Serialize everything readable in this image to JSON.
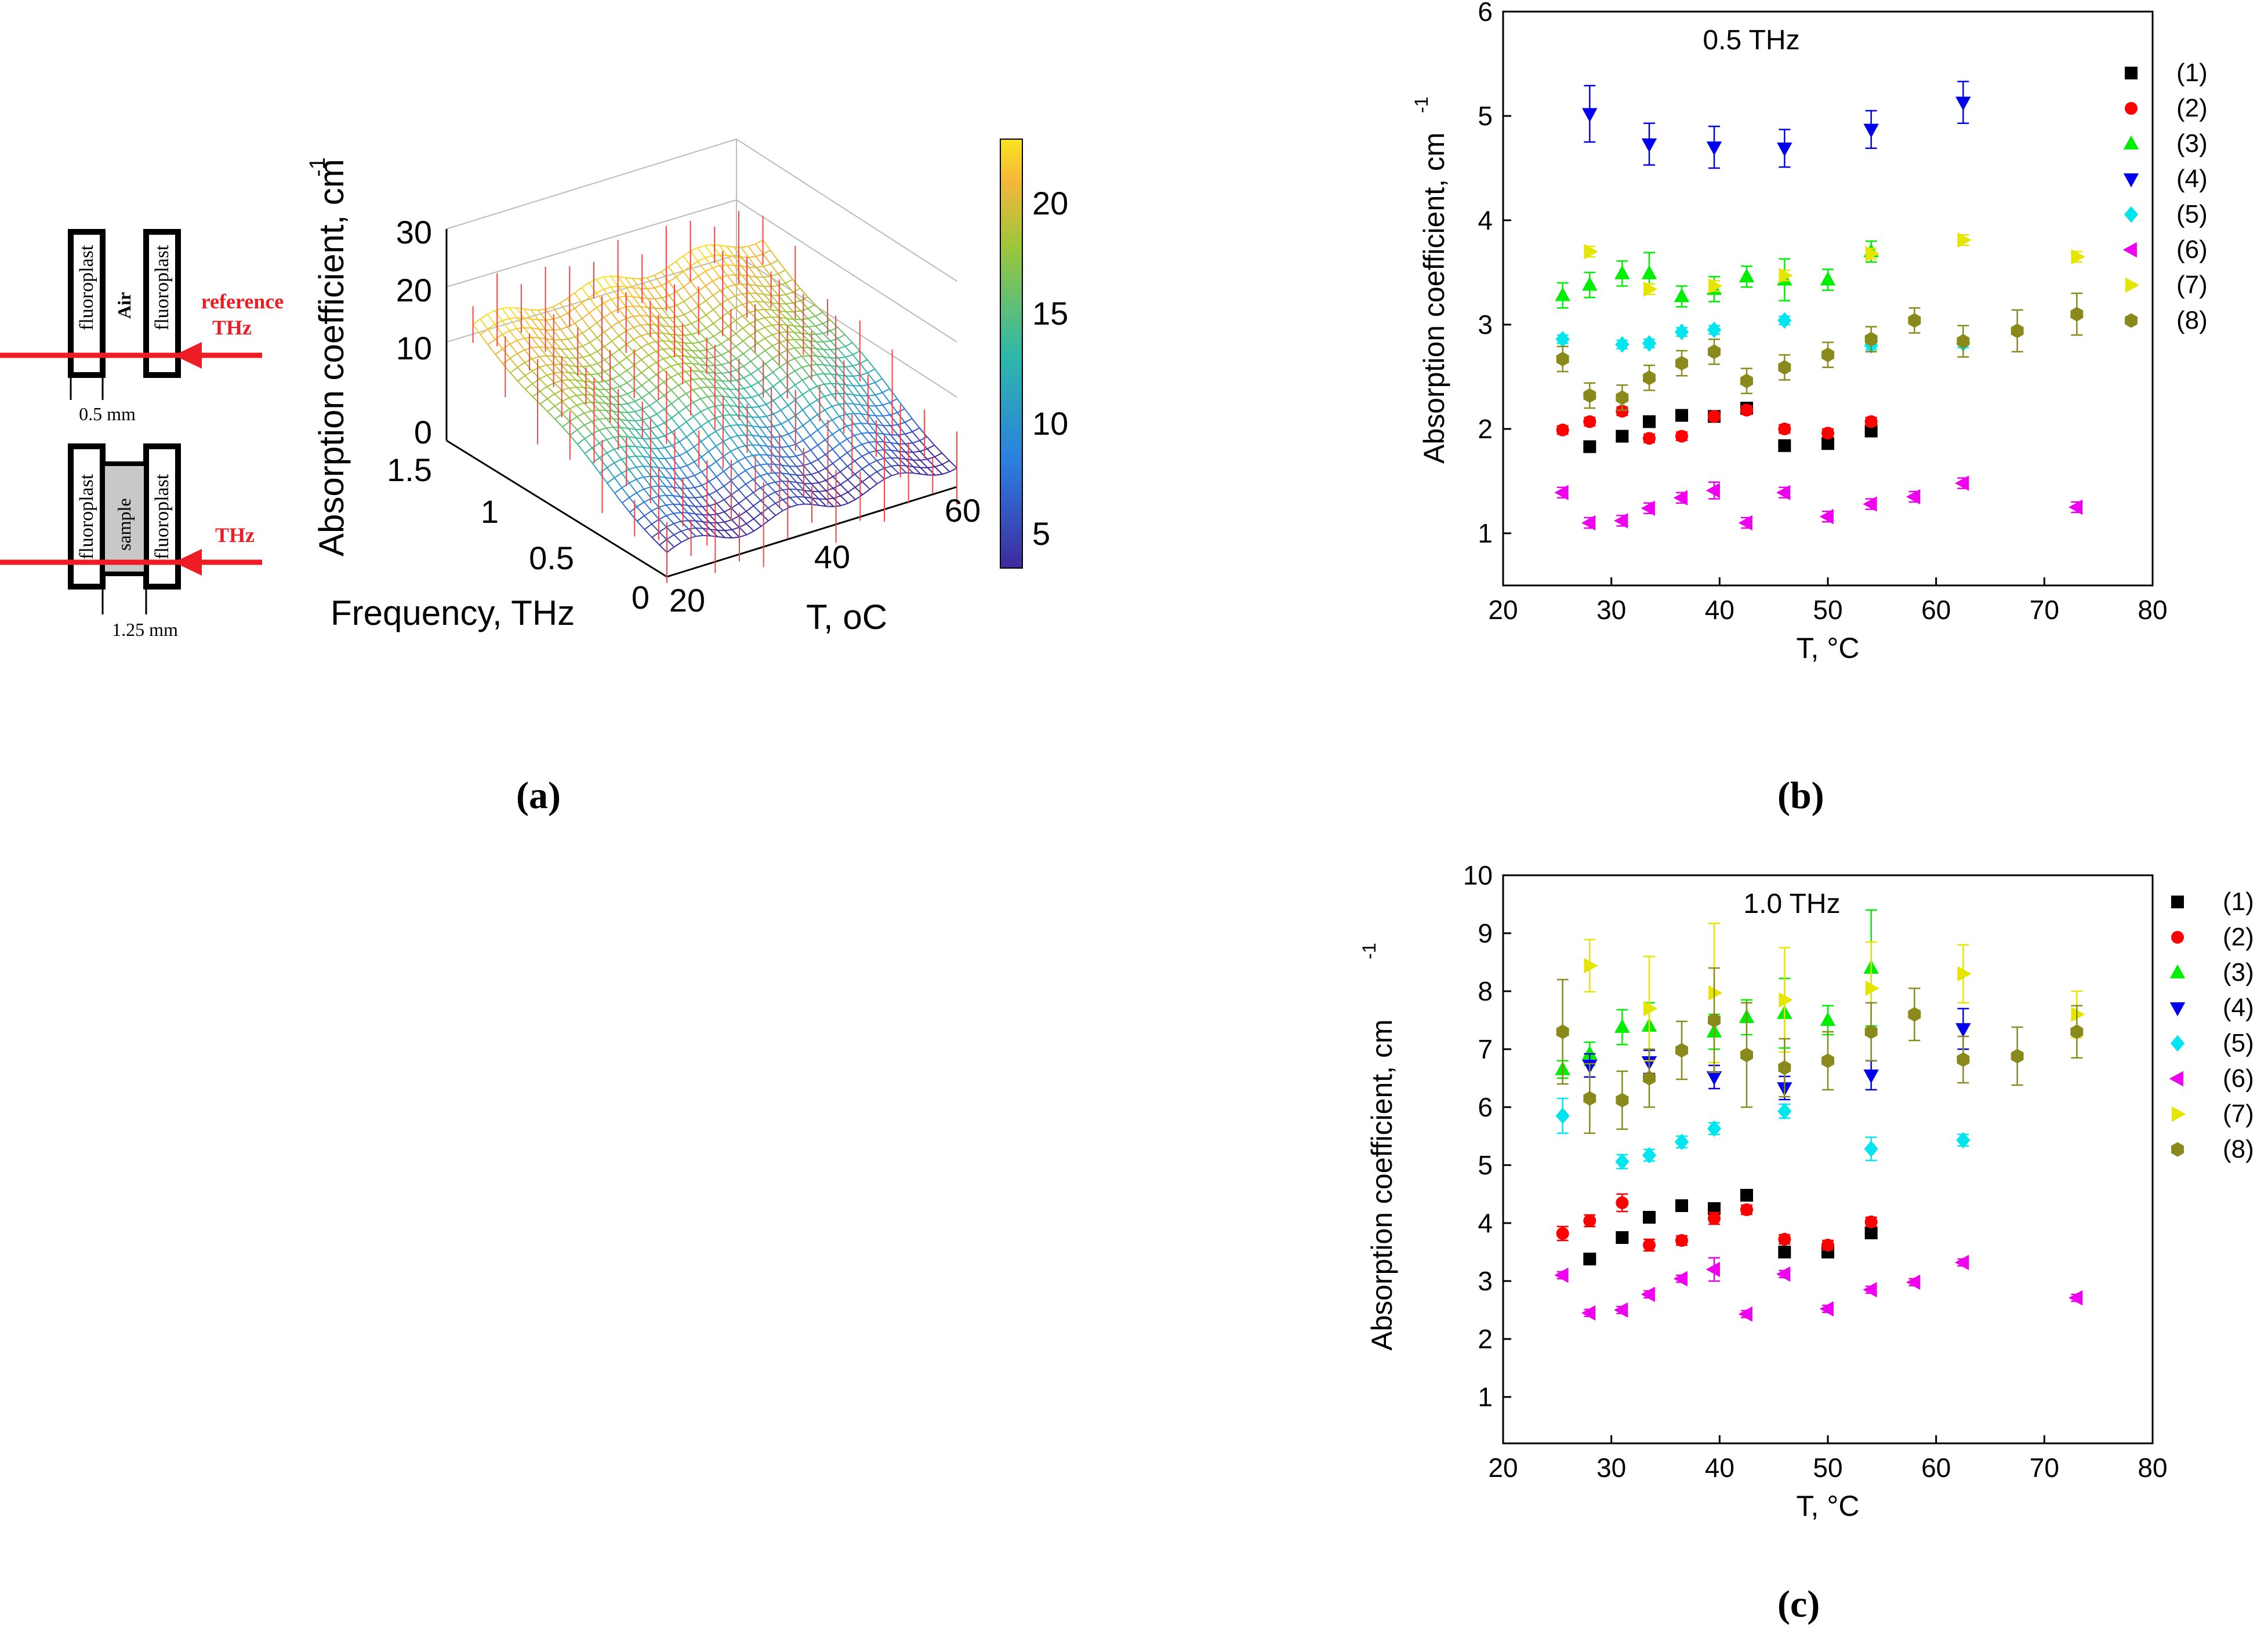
{
  "panel_a": {
    "schematic": {
      "air_cell": {
        "left_wall": "fluoroplast",
        "gap": "Air",
        "right_wall": "fluoroplast",
        "beam": "reference\nTHz",
        "dimension": "0.5 mm"
      },
      "sample_cell": {
        "left_wall": "fluoroplast",
        "gap": "sample",
        "right_wall": "fluoroplast",
        "beam": "THz",
        "dimension": "1.25 mm"
      }
    },
    "surface": {
      "zlabel": "Absorption  coefficient, cm",
      "zlabel_sup": "-1",
      "xlabel": "Frequency, THz",
      "ylabel": "T, oC",
      "z_ticks": [
        "30",
        "20",
        "10",
        "0"
      ],
      "freq_ticks": [
        "1.5",
        "1",
        "0.5",
        "0"
      ],
      "temp_ticks": [
        "20",
        "40",
        "60"
      ],
      "colorbar_ticks": [
        "20",
        "15",
        "10",
        "5"
      ],
      "colors": {
        "low": "#3f2a9e",
        "mid": "#2fb8a8",
        "high": "#f9e51f",
        "error_bars": "#ff4040"
      }
    },
    "caption": "(a)"
  },
  "chart_data": [
    {
      "type": "scatter",
      "title": "0.5 THz",
      "xlabel": "T, °C",
      "ylabel": "Absorption coefficient, cm",
      "ylabel_sup": "-1",
      "xlim": [
        20,
        80
      ],
      "ylim": [
        0.5,
        6
      ],
      "x_ticks": [
        20,
        30,
        40,
        50,
        60,
        70,
        80
      ],
      "y_ticks": [
        1,
        2,
        3,
        4,
        5,
        6
      ],
      "grid": false,
      "legend": "top-right",
      "series": [
        {
          "name": "(1)",
          "color": "#000000",
          "marker": "square",
          "points": [
            [
              28,
              1.83
            ],
            [
              31,
              1.93
            ],
            [
              33.5,
              2.07
            ],
            [
              36.5,
              2.13
            ],
            [
              39.5,
              2.12
            ],
            [
              42.5,
              2.2
            ],
            [
              46,
              1.84
            ],
            [
              50,
              1.86
            ],
            [
              54,
              1.98
            ]
          ],
          "err": [
            0.05,
            0.05,
            0.05,
            0.05,
            0.05,
            0.05,
            0.05,
            0.05,
            0.05
          ]
        },
        {
          "name": "(2)",
          "color": "#ff0000",
          "marker": "circle",
          "points": [
            [
              25.5,
              1.99
            ],
            [
              28,
              2.07
            ],
            [
              31,
              2.17
            ],
            [
              33.5,
              1.91
            ],
            [
              36.5,
              1.93
            ],
            [
              39.5,
              2.12
            ],
            [
              42.5,
              2.18
            ],
            [
              46,
              2
            ],
            [
              50,
              1.96
            ],
            [
              54,
              2.07
            ]
          ],
          "err": [
            0.04,
            0.04,
            0.04,
            0.04,
            0.04,
            0.04,
            0.04,
            0.04,
            0.04,
            0.04
          ]
        },
        {
          "name": "(3)",
          "color": "#00ee00",
          "marker": "triangle-up",
          "points": [
            [
              25.5,
              3.28
            ],
            [
              28,
              3.38
            ],
            [
              31,
              3.49
            ],
            [
              33.5,
              3.49
            ],
            [
              36.5,
              3.27
            ],
            [
              39.5,
              3.34
            ],
            [
              42.5,
              3.46
            ],
            [
              46,
              3.43
            ],
            [
              50,
              3.43
            ],
            [
              54,
              3.7
            ]
          ],
          "err": [
            0.12,
            0.12,
            0.12,
            0.2,
            0.1,
            0.12,
            0.1,
            0.2,
            0.1,
            0.1
          ]
        },
        {
          "name": "(4)",
          "color": "#0000ee",
          "marker": "triangle-down",
          "points": [
            [
              28,
              5.02
            ],
            [
              33.5,
              4.73
            ],
            [
              39.5,
              4.7
            ],
            [
              46,
              4.69
            ],
            [
              54,
              4.87
            ],
            [
              62.5,
              5.13
            ]
          ],
          "err": [
            0.27,
            0.2,
            0.2,
            0.18,
            0.18,
            0.2
          ]
        },
        {
          "name": "(5)",
          "color": "#00e5ee",
          "marker": "diamond",
          "points": [
            [
              25.5,
              2.86
            ],
            [
              31,
              2.81
            ],
            [
              33.5,
              2.82
            ],
            [
              36.5,
              2.93
            ],
            [
              39.5,
              2.95
            ],
            [
              46,
              3.04
            ],
            [
              54,
              2.8
            ],
            [
              62.5,
              2.82
            ]
          ],
          "err": [
            0.04,
            0.04,
            0.04,
            0.04,
            0.04,
            0.04,
            0.04,
            0.04
          ]
        },
        {
          "name": "(6)",
          "color": "#ee00ee",
          "marker": "triangle-left",
          "points": [
            [
              25.5,
              1.39
            ],
            [
              28,
              1.1
            ],
            [
              31,
              1.12
            ],
            [
              33.5,
              1.24
            ],
            [
              36.5,
              1.34
            ],
            [
              39.5,
              1.41
            ],
            [
              42.5,
              1.1
            ],
            [
              46,
              1.39
            ],
            [
              50,
              1.16
            ],
            [
              54,
              1.28
            ],
            [
              58,
              1.35
            ],
            [
              62.5,
              1.48
            ],
            [
              73,
              1.25
            ]
          ],
          "err": [
            0.05,
            0.05,
            0.05,
            0.05,
            0.05,
            0.08,
            0.05,
            0.05,
            0.05,
            0.05,
            0.05,
            0.05,
            0.05
          ]
        },
        {
          "name": "(7)",
          "color": "#e5e500",
          "marker": "triangle-right",
          "points": [
            [
              28,
              3.7
            ],
            [
              33.5,
              3.34
            ],
            [
              39.5,
              3.37
            ],
            [
              46,
              3.47
            ],
            [
              54,
              3.68
            ],
            [
              62.5,
              3.81
            ],
            [
              73,
              3.65
            ]
          ],
          "err": [
            0.05,
            0.05,
            0.05,
            0.05,
            0.05,
            0.05,
            0.05
          ]
        },
        {
          "name": "(8)",
          "color": "#8a8a1c",
          "marker": "hexagon",
          "points": [
            [
              25.5,
              2.67
            ],
            [
              28,
              2.32
            ],
            [
              31,
              2.3
            ],
            [
              33.5,
              2.49
            ],
            [
              36.5,
              2.63
            ],
            [
              39.5,
              2.74
            ],
            [
              42.5,
              2.46
            ],
            [
              46,
              2.59
            ],
            [
              50,
              2.71
            ],
            [
              54,
              2.86
            ],
            [
              58,
              3.04
            ],
            [
              62.5,
              2.84
            ],
            [
              67.5,
              2.94
            ],
            [
              73,
              3.1
            ]
          ],
          "err": [
            0.12,
            0.12,
            0.12,
            0.12,
            0.12,
            0.12,
            0.12,
            0.12,
            0.12,
            0.12,
            0.12,
            0.15,
            0.2,
            0.2
          ]
        }
      ]
    },
    {
      "type": "scatter",
      "title": "1.0 THz",
      "xlabel": "T, °C",
      "ylabel": "Absorption coefficient, cm",
      "ylabel_sup": "-1",
      "xlim": [
        20,
        80
      ],
      "ylim": [
        0.2,
        10
      ],
      "x_ticks": [
        20,
        30,
        40,
        50,
        60,
        70,
        80
      ],
      "y_ticks": [
        1,
        2,
        3,
        4,
        5,
        6,
        7,
        8,
        9,
        10
      ],
      "grid": false,
      "legend": "top-right",
      "series": [
        {
          "name": "(1)",
          "color": "#000000",
          "marker": "square",
          "points": [
            [
              28,
              3.38
            ],
            [
              31,
              3.75
            ],
            [
              33.5,
              4.1
            ],
            [
              36.5,
              4.3
            ],
            [
              39.5,
              4.25
            ],
            [
              42.5,
              4.48
            ],
            [
              46,
              3.5
            ],
            [
              50,
              3.5
            ],
            [
              54,
              3.83
            ]
          ],
          "err": [
            0.06,
            0.06,
            0.06,
            0.06,
            0.06,
            0.06,
            0.06,
            0.06,
            0.06
          ]
        },
        {
          "name": "(2)",
          "color": "#ff0000",
          "marker": "circle",
          "points": [
            [
              25.5,
              3.82
            ],
            [
              28,
              4.04
            ],
            [
              31,
              4.35
            ],
            [
              33.5,
              3.62
            ],
            [
              36.5,
              3.7
            ],
            [
              39.5,
              4.08
            ],
            [
              42.5,
              4.23
            ],
            [
              46,
              3.72
            ],
            [
              50,
              3.62
            ],
            [
              54,
              4.02
            ]
          ],
          "err": [
            0.12,
            0.1,
            0.15,
            0.1,
            0.08,
            0.1,
            0.08,
            0.08,
            0.08,
            0.08
          ]
        },
        {
          "name": "(3)",
          "color": "#00ee00",
          "marker": "triangle-up",
          "points": [
            [
              25.5,
              6.65
            ],
            [
              28,
              6.92
            ],
            [
              31,
              7.38
            ],
            [
              33.5,
              7.4
            ],
            [
              39.5,
              7.3
            ],
            [
              42.5,
              7.55
            ],
            [
              46,
              7.62
            ],
            [
              50,
              7.5
            ],
            [
              54,
              8.4
            ]
          ],
          "err": [
            0.15,
            0.2,
            0.3,
            0.4,
            0.3,
            0.3,
            0.6,
            0.25,
            1.0
          ]
        },
        {
          "name": "(4)",
          "color": "#0000ee",
          "marker": "triangle-down",
          "points": [
            [
              28,
              6.72
            ],
            [
              33.5,
              6.78
            ],
            [
              39.5,
              6.52
            ],
            [
              46,
              6.33
            ],
            [
              54,
              6.55
            ],
            [
              62.5,
              7.35
            ]
          ],
          "err": [
            0.2,
            0.2,
            0.2,
            0.2,
            0.25,
            0.35
          ]
        },
        {
          "name": "(5)",
          "color": "#00e5ee",
          "marker": "diamond",
          "points": [
            [
              25.5,
              5.85
            ],
            [
              31,
              5.06
            ],
            [
              33.5,
              5.17
            ],
            [
              36.5,
              5.4
            ],
            [
              39.5,
              5.63
            ],
            [
              46,
              5.93
            ],
            [
              54,
              5.28
            ],
            [
              62.5,
              5.43
            ]
          ],
          "err": [
            0.3,
            0.12,
            0.1,
            0.1,
            0.1,
            0.12,
            0.2,
            0.1
          ]
        },
        {
          "name": "(6)",
          "color": "#ee00ee",
          "marker": "triangle-left",
          "points": [
            [
              25.5,
              3.1
            ],
            [
              28,
              2.45
            ],
            [
              31,
              2.5
            ],
            [
              33.5,
              2.77
            ],
            [
              36.5,
              3.04
            ],
            [
              39.5,
              3.2
            ],
            [
              42.5,
              2.43
            ],
            [
              46,
              3.12
            ],
            [
              50,
              2.52
            ],
            [
              54,
              2.85
            ],
            [
              58,
              2.98
            ],
            [
              62.5,
              3.32
            ],
            [
              73,
              2.71
            ]
          ],
          "err": [
            0.06,
            0.06,
            0.06,
            0.06,
            0.06,
            0.2,
            0.06,
            0.06,
            0.06,
            0.06,
            0.06,
            0.06,
            0.06
          ]
        },
        {
          "name": "(7)",
          "color": "#e5e500",
          "marker": "triangle-right",
          "points": [
            [
              28,
              8.44
            ],
            [
              33.5,
              7.7
            ],
            [
              39.5,
              7.97
            ],
            [
              46,
              7.85
            ],
            [
              54,
              8.05
            ],
            [
              62.5,
              8.3
            ],
            [
              73,
              7.6
            ]
          ],
          "err": [
            0.45,
            0.9,
            1.2,
            0.9,
            0.8,
            0.5,
            0.4
          ]
        },
        {
          "name": "(8)",
          "color": "#8a8a1c",
          "marker": "hexagon",
          "points": [
            [
              25.5,
              7.3
            ],
            [
              28,
              6.15
            ],
            [
              31,
              6.12
            ],
            [
              33.5,
              6.5
            ],
            [
              36.5,
              6.98
            ],
            [
              39.5,
              7.5
            ],
            [
              42.5,
              6.9
            ],
            [
              46,
              6.68
            ],
            [
              50,
              6.8
            ],
            [
              54,
              7.3
            ],
            [
              58,
              7.6
            ],
            [
              62.5,
              6.82
            ],
            [
              67.5,
              6.88
            ],
            [
              73,
              7.3
            ]
          ],
          "err": [
            0.9,
            0.6,
            0.5,
            0.5,
            0.5,
            0.9,
            0.9,
            0.5,
            0.5,
            0.5,
            0.45,
            0.4,
            0.5,
            0.45
          ]
        }
      ]
    }
  ],
  "captions": {
    "b": "(b)",
    "c": "(c)"
  }
}
